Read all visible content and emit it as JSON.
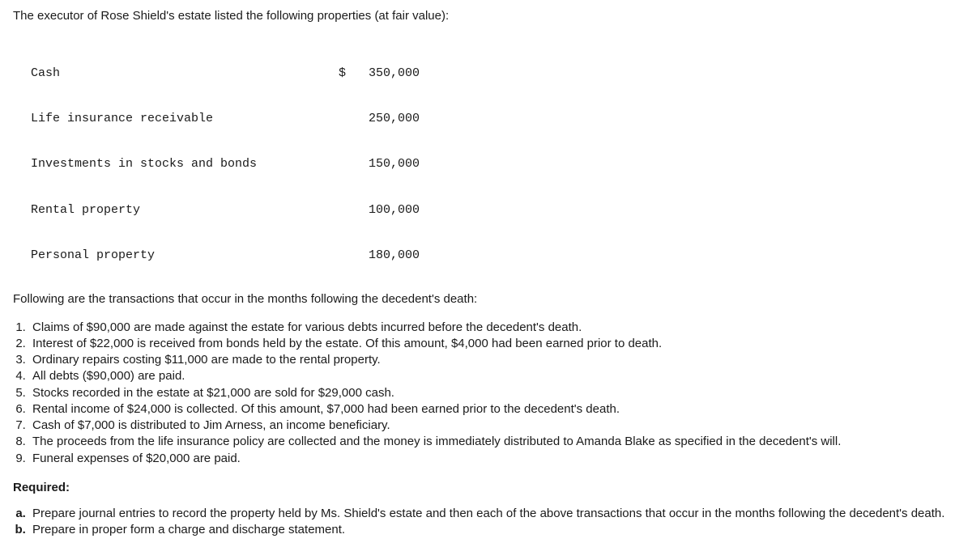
{
  "intro": "The executor of Rose Shield's estate listed the following properties (at fair value):",
  "properties": [
    {
      "label": "Cash",
      "currency": "$",
      "value": "350,000"
    },
    {
      "label": "Life insurance receivable",
      "currency": "",
      "value": "250,000"
    },
    {
      "label": "Investments in stocks and bonds",
      "currency": "",
      "value": "150,000"
    },
    {
      "label": "Rental property",
      "currency": "",
      "value": "100,000"
    },
    {
      "label": "Personal property",
      "currency": "",
      "value": "180,000"
    }
  ],
  "following": "Following are the transactions that occur in the months following the decedent's death:",
  "transactions": [
    "Claims of $90,000 are made against the estate for various debts incurred before the decedent's death.",
    "Interest of $22,000 is received from bonds held by the estate. Of this amount, $4,000 had been earned prior to death.",
    "Ordinary repairs costing $11,000 are made to the rental property.",
    "All debts ($90,000) are paid.",
    "Stocks recorded in the estate at $21,000 are sold for $29,000 cash.",
    "Rental income of $24,000 is collected. Of this amount, $7,000 had been earned prior to the decedent's death.",
    "Cash of $7,000 is distributed to Jim Arness, an income beneficiary.",
    "The proceeds from the life insurance policy are collected and the money is immediately distributed to Amanda Blake as specified in the decedent's will.",
    "Funeral expenses of $20,000 are paid."
  ],
  "required_heading": "Required:",
  "required": [
    "Prepare journal entries to record the property held by Ms. Shield's estate and then each of the above transactions that occur in the months following the decedent's death.",
    "Prepare in proper form a charge and discharge statement."
  ]
}
